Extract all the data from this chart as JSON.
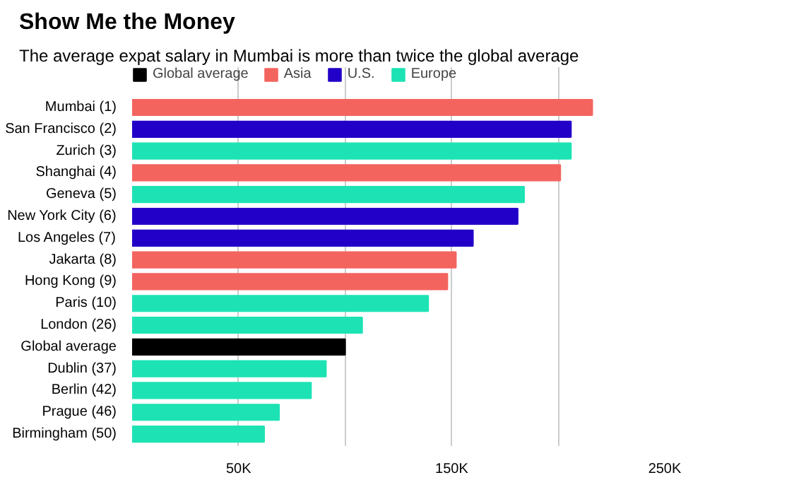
{
  "chart_data": {
    "type": "bar",
    "orientation": "horizontal",
    "title": "Show Me the Money",
    "subtitle": "The average expat salary in Mumbai is more than twice the global average",
    "categories": [
      "Mumbai (1)",
      "San Francisco (2)",
      "Zurich (3)",
      "Shanghai (4)",
      "Geneva (5)",
      "New York City (6)",
      "Los Angeles (7)",
      "Jakarta (8)",
      "Hong Kong (9)",
      "Paris (10)",
      "London (26)",
      "Global average",
      "Dublin (37)",
      "Berlin (42)",
      "Prague (46)",
      "Birmingham (50)"
    ],
    "series": [
      {
        "name": "Global average",
        "color": "#000000",
        "values": [
          null,
          null,
          null,
          null,
          null,
          null,
          null,
          null,
          null,
          null,
          null,
          100,
          null,
          null,
          null,
          null
        ]
      },
      {
        "name": "Asia",
        "color": "#f4645f",
        "values": [
          216,
          null,
          null,
          201,
          null,
          null,
          null,
          152,
          148,
          null,
          null,
          null,
          null,
          null,
          null,
          null
        ]
      },
      {
        "name": "U.S.",
        "color": "#2200c8",
        "values": [
          null,
          206,
          null,
          null,
          null,
          181,
          160,
          null,
          null,
          null,
          null,
          null,
          null,
          null,
          null,
          null
        ]
      },
      {
        "name": "Europe",
        "color": "#1de3b4",
        "values": [
          null,
          null,
          206,
          null,
          184,
          null,
          null,
          null,
          null,
          139,
          108,
          null,
          91,
          84,
          69,
          62
        ]
      }
    ],
    "xlim": [
      0,
      250
    ],
    "xticks": [
      {
        "value": 50,
        "label": "50K"
      },
      {
        "value": 100,
        "label": null
      },
      {
        "value": 150,
        "label": "150K"
      },
      {
        "value": 200,
        "label": null
      },
      {
        "value": 250,
        "label": "250K"
      }
    ],
    "grid": "x",
    "legend": "top"
  }
}
